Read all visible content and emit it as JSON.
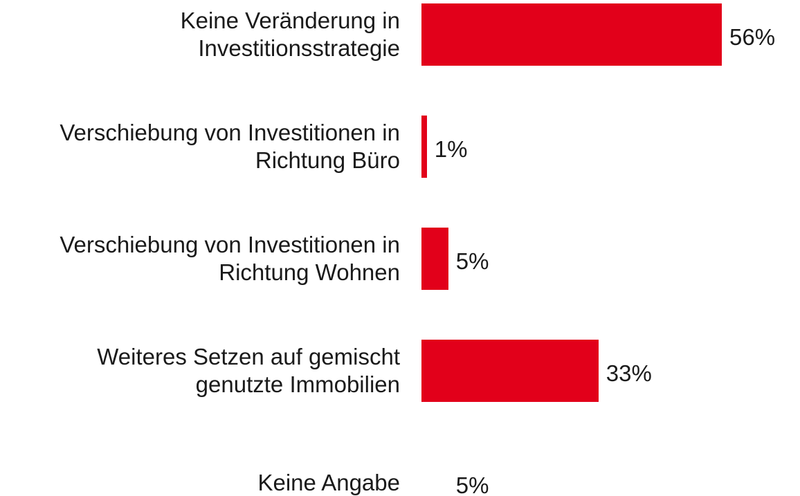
{
  "chart_data": {
    "type": "bar",
    "orientation": "horizontal",
    "categories": [
      "Keine Veränderung in\nInvestitionsstrategie",
      "Verschiebung von Investitionen in\nRichtung Büro",
      "Verschiebung von Investitionen in\nRichtung Wohnen",
      "Weiteres Setzen auf gemischt\ngenutzte Immobilien",
      "Keine Angabe"
    ],
    "values": [
      56,
      1,
      5,
      33,
      5
    ],
    "value_labels": [
      "56%",
      "1%",
      "5%",
      "33%",
      "5%"
    ],
    "colors": [
      "#e2001a",
      "#e2001a",
      "#e2001a",
      "#e2001a",
      "#ffffff"
    ],
    "xlim": [
      0,
      60
    ],
    "grid": false
  }
}
